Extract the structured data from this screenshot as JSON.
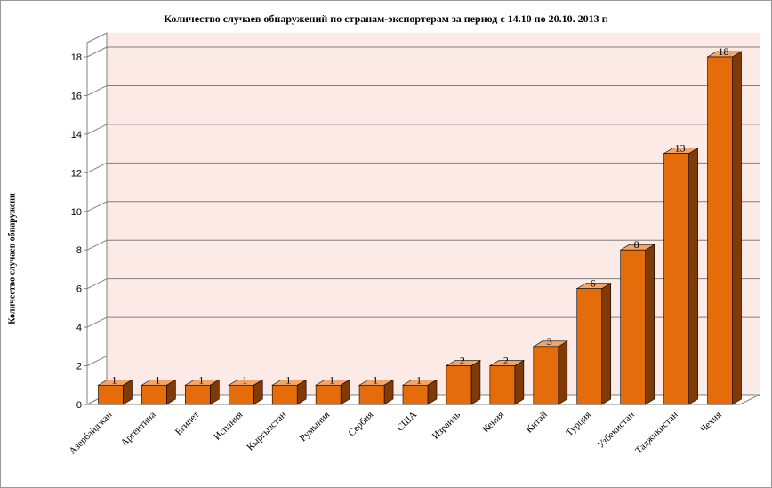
{
  "chart_data": {
    "type": "bar",
    "title": "Количество случаев обнаружений по странам-экспортерам за период с 14.10 по 20.10. 2013 г.",
    "xlabel": "",
    "ylabel": "Количество случаев обнаружени",
    "categories": [
      "Азербайджан",
      "Аргентина",
      "Египет",
      "Испания",
      "Кыргызстан",
      "Румыния",
      "Сербия",
      "США",
      "Израиль",
      "Кения",
      "Китай",
      "Турция",
      "Узбекистан",
      "Таджикистан",
      "Чехия"
    ],
    "values": [
      1,
      1,
      1,
      1,
      1,
      1,
      1,
      1,
      2,
      2,
      3,
      6,
      8,
      13,
      18
    ],
    "ylim": [
      0,
      18
    ],
    "yticks": [
      0,
      2,
      4,
      6,
      8,
      10,
      12,
      14,
      16,
      18
    ],
    "grid": true,
    "style": "3d-bar",
    "colors": {
      "bar_front": "#e46c0a",
      "bar_side": "#7f3a08",
      "bar_top": "#f3a468",
      "back_wall": "#fbeae5",
      "floor": "#ffffff",
      "gridline": "#808080"
    }
  }
}
